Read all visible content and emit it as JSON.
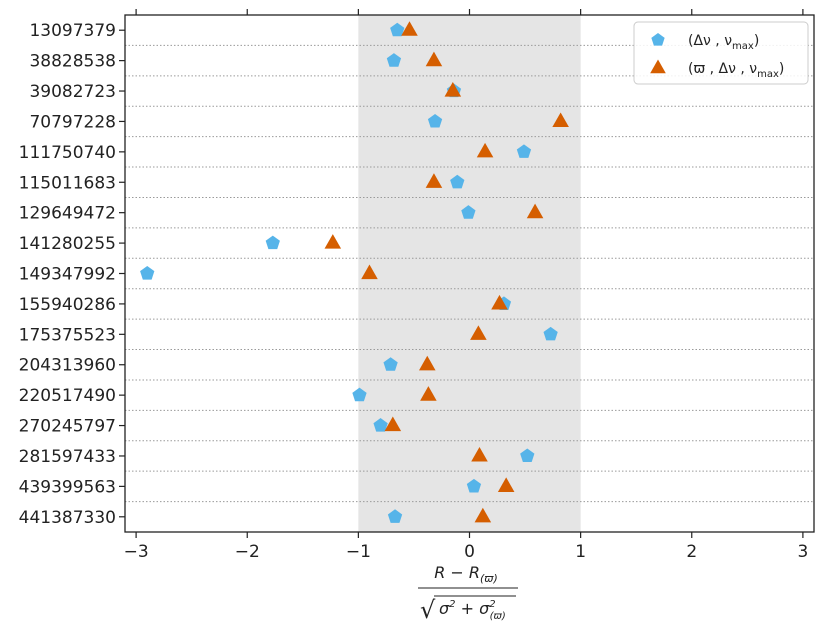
{
  "chart_data": {
    "type": "scatter",
    "categories": [
      "13097379",
      "38828538",
      "39082723",
      "70797228",
      "111750740",
      "115011683",
      "129649472",
      "141280255",
      "149347992",
      "155940286",
      "175375523",
      "204313960",
      "220517490",
      "270245797",
      "281597433",
      "439399563",
      "441387330"
    ],
    "series": [
      {
        "name": "(Δν , νmax)",
        "marker": "pentagon",
        "color": "#56B4E9",
        "values": [
          -0.65,
          -0.68,
          -0.14,
          -0.31,
          0.49,
          -0.11,
          -0.01,
          -1.77,
          -2.9,
          0.31,
          0.73,
          -0.71,
          -0.99,
          -0.8,
          0.52,
          0.04,
          -0.67
        ]
      },
      {
        "name": "(ϖ , Δν , νmax)",
        "marker": "triangle",
        "color": "#D55E00",
        "values": [
          -0.54,
          -0.32,
          -0.15,
          0.82,
          0.14,
          -0.32,
          0.59,
          -1.23,
          -0.9,
          0.27,
          0.08,
          -0.38,
          -0.37,
          -0.69,
          0.09,
          0.33,
          0.12
        ]
      }
    ],
    "xlim": [
      -3.1,
      3.1
    ],
    "xticks": [
      -3,
      -2,
      -1,
      0,
      1,
      2,
      3
    ],
    "xtick_labels": [
      "−3",
      "−2",
      "−1",
      "0",
      "1",
      "2",
      "3"
    ],
    "shaded_band": [
      -1,
      1
    ],
    "band_color": "#e5e5e5",
    "legend": {
      "position": "top-right",
      "entries": [
        {
          "main": "(Δν , ν",
          "sub": "max",
          "tail": ")"
        },
        {
          "main": "(ϖ , Δν , ν",
          "sub": "max",
          "tail": ")"
        }
      ]
    },
    "xlabel": {
      "numerator_main": "R − R",
      "numerator_sub": "(ϖ)",
      "denom_sqrt": "√",
      "denom_a": "σ",
      "denom_a_sup": "2",
      "denom_plus": " + σ",
      "denom_b_sup": "2",
      "denom_b_sub": "(ϖ)"
    },
    "grid": "horizontal-dotted"
  }
}
